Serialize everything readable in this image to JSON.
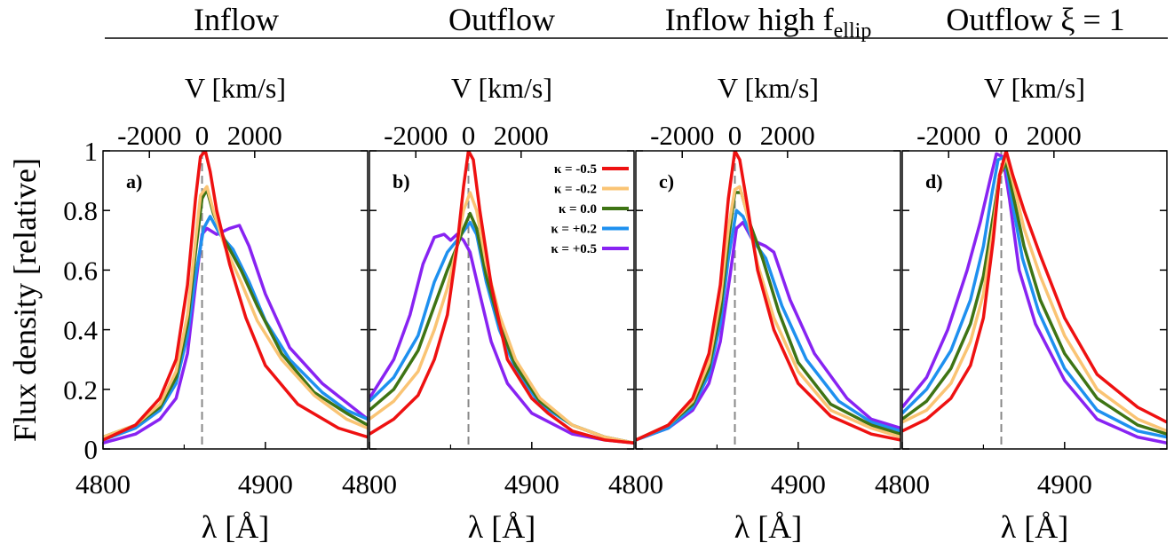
{
  "figure": {
    "column_titles": [
      {
        "text": "Inflow",
        "sub": ""
      },
      {
        "text": "Outflow",
        "sub": ""
      },
      {
        "text": "Inflow high f",
        "sub": "ellip"
      },
      {
        "text": "Outflow ξ = 1",
        "sub": ""
      }
    ],
    "top_axis_label": "V [km/s]",
    "top_tick_labels": [
      "-2000",
      "0",
      "2000"
    ],
    "x_tick_labels": [
      "4800",
      "4900"
    ],
    "x_axis_label": "λ [Å]",
    "y_axis_label": "Flux density [relative]",
    "y_tick_labels": [
      "0",
      "0.2",
      "0.4",
      "0.6",
      "0.8",
      "1"
    ]
  },
  "chart_data": {
    "type": "line",
    "xlabel": "λ [Å]",
    "ylabel": "Flux density [relative]",
    "top_xlabel": "V [km/s]",
    "xlim": [
      4800,
      4963
    ],
    "ylim": [
      0,
      1
    ],
    "top_xticks": [
      -2000,
      0,
      2000
    ],
    "xticks": [
      4800,
      4900
    ],
    "yticks": [
      0,
      0.2,
      0.4,
      0.6,
      0.8,
      1
    ],
    "legend": {
      "panel": "b",
      "placement": "top-right",
      "entries": [
        "κ = -0.5",
        "κ = -0.2",
        "κ = 0.0",
        "κ = +0.2",
        "κ = +0.5"
      ]
    },
    "series_colors": [
      "#ee1111",
      "#fac474",
      "#3e7414",
      "#1e90ef",
      "#8823f2"
    ],
    "reference_line": {
      "style": "dashed",
      "color": "#888888"
    },
    "panels": [
      {
        "label": "a)",
        "title": "Inflow",
        "ref_x": 4861,
        "series": [
          {
            "name": "κ = -0.5",
            "x": [
              4800,
              4820,
              4835,
              4845,
              4852,
              4857,
              4860,
              4863,
              4866,
              4870,
              4878,
              4888,
              4900,
              4920,
              4945,
              4963
            ],
            "y": [
              0.03,
              0.08,
              0.17,
              0.3,
              0.55,
              0.84,
              0.98,
              1.0,
              0.93,
              0.8,
              0.62,
              0.44,
              0.28,
              0.15,
              0.07,
              0.04
            ]
          },
          {
            "name": "κ = -0.2",
            "x": [
              4800,
              4820,
              4835,
              4845,
              4852,
              4857,
              4860,
              4864,
              4868,
              4875,
              4885,
              4895,
              4910,
              4930,
              4950,
              4963
            ],
            "y": [
              0.04,
              0.08,
              0.15,
              0.26,
              0.45,
              0.7,
              0.85,
              0.88,
              0.8,
              0.68,
              0.56,
              0.43,
              0.3,
              0.18,
              0.1,
              0.07
            ]
          },
          {
            "name": "κ = 0.0",
            "x": [
              4800,
              4820,
              4835,
              4845,
              4852,
              4857,
              4861,
              4864,
              4868,
              4875,
              4885,
              4895,
              4910,
              4930,
              4950,
              4963
            ],
            "y": [
              0.04,
              0.08,
              0.14,
              0.24,
              0.42,
              0.66,
              0.84,
              0.87,
              0.79,
              0.7,
              0.6,
              0.48,
              0.32,
              0.19,
              0.12,
              0.08
            ]
          },
          {
            "name": "κ = +0.2",
            "x": [
              4800,
              4820,
              4835,
              4845,
              4852,
              4857,
              4862,
              4866,
              4872,
              4880,
              4890,
              4900,
              4915,
              4935,
              4950,
              4963
            ],
            "y": [
              0.03,
              0.07,
              0.13,
              0.22,
              0.38,
              0.58,
              0.74,
              0.78,
              0.72,
              0.67,
              0.56,
              0.43,
              0.3,
              0.19,
              0.13,
              0.1
            ]
          },
          {
            "name": "κ = +0.5",
            "x": [
              4800,
              4820,
              4835,
              4845,
              4852,
              4857,
              4861,
              4864,
              4870,
              4878,
              4884,
              4890,
              4900,
              4915,
              4935,
              4963
            ],
            "y": [
              0.02,
              0.05,
              0.1,
              0.17,
              0.32,
              0.55,
              0.72,
              0.74,
              0.72,
              0.74,
              0.75,
              0.68,
              0.52,
              0.34,
              0.22,
              0.1
            ]
          }
        ]
      },
      {
        "label": "b)",
        "title": "Outflow",
        "ref_x": 4861,
        "series": [
          {
            "name": "κ = -0.5",
            "x": [
              4800,
              4815,
              4830,
              4840,
              4848,
              4854,
              4858,
              4861,
              4864,
              4868,
              4875,
              4885,
              4900,
              4910,
              4925,
              4945,
              4963
            ],
            "y": [
              0.05,
              0.1,
              0.18,
              0.3,
              0.45,
              0.68,
              0.88,
              1.0,
              0.97,
              0.8,
              0.55,
              0.3,
              0.17,
              0.12,
              0.06,
              0.03,
              0.02
            ]
          },
          {
            "name": "κ = -0.2",
            "x": [
              4800,
              4815,
              4830,
              4840,
              4848,
              4854,
              4858,
              4862,
              4866,
              4872,
              4880,
              4890,
              4905,
              4925,
              4945,
              4963
            ],
            "y": [
              0.1,
              0.16,
              0.26,
              0.4,
              0.54,
              0.68,
              0.8,
              0.86,
              0.8,
              0.62,
              0.45,
              0.3,
              0.17,
              0.08,
              0.04,
              0.02
            ]
          },
          {
            "name": "κ = 0.0",
            "x": [
              4800,
              4815,
              4830,
              4840,
              4848,
              4854,
              4858,
              4862,
              4866,
              4872,
              4880,
              4890,
              4905,
              4925,
              4945,
              4963
            ],
            "y": [
              0.13,
              0.2,
              0.33,
              0.48,
              0.6,
              0.68,
              0.74,
              0.79,
              0.74,
              0.58,
              0.42,
              0.28,
              0.16,
              0.08,
              0.04,
              0.02
            ]
          },
          {
            "name": "κ = +0.2",
            "x": [
              4800,
              4815,
              4830,
              4840,
              4848,
              4854,
              4858,
              4862,
              4866,
              4872,
              4880,
              4890,
              4905,
              4925,
              4945,
              4963
            ],
            "y": [
              0.16,
              0.24,
              0.38,
              0.56,
              0.66,
              0.7,
              0.73,
              0.76,
              0.72,
              0.56,
              0.4,
              0.27,
              0.15,
              0.08,
              0.04,
              0.02
            ]
          },
          {
            "name": "κ = +0.5",
            "x": [
              4800,
              4815,
              4825,
              4833,
              4840,
              4846,
              4850,
              4854,
              4858,
              4862,
              4868,
              4875,
              4885,
              4900,
              4925,
              4945,
              4963
            ],
            "y": [
              0.17,
              0.3,
              0.45,
              0.62,
              0.71,
              0.72,
              0.7,
              0.72,
              0.7,
              0.66,
              0.52,
              0.36,
              0.22,
              0.12,
              0.05,
              0.03,
              0.02
            ]
          }
        ]
      },
      {
        "label": "c)",
        "title": "Inflow high f_ellip",
        "ref_x": 4861,
        "series": [
          {
            "name": "κ = -0.5",
            "x": [
              4800,
              4820,
              4835,
              4845,
              4852,
              4857,
              4861,
              4864,
              4868,
              4875,
              4885,
              4900,
              4920,
              4945,
              4963
            ],
            "y": [
              0.03,
              0.08,
              0.17,
              0.32,
              0.55,
              0.84,
              1.0,
              0.97,
              0.84,
              0.6,
              0.4,
              0.22,
              0.11,
              0.05,
              0.03
            ]
          },
          {
            "name": "κ = -0.2",
            "x": [
              4800,
              4820,
              4835,
              4845,
              4852,
              4857,
              4861,
              4864,
              4868,
              4875,
              4885,
              4900,
              4920,
              4945,
              4963
            ],
            "y": [
              0.03,
              0.08,
              0.16,
              0.29,
              0.5,
              0.74,
              0.87,
              0.88,
              0.8,
              0.62,
              0.44,
              0.26,
              0.13,
              0.07,
              0.04
            ]
          },
          {
            "name": "κ = 0.0",
            "x": [
              4800,
              4820,
              4835,
              4845,
              4852,
              4857,
              4861,
              4865,
              4870,
              4878,
              4888,
              4900,
              4920,
              4945,
              4963
            ],
            "y": [
              0.03,
              0.08,
              0.15,
              0.27,
              0.46,
              0.7,
              0.86,
              0.86,
              0.76,
              0.64,
              0.46,
              0.29,
              0.15,
              0.08,
              0.05
            ]
          },
          {
            "name": "κ = +0.2",
            "x": [
              4800,
              4820,
              4835,
              4845,
              4852,
              4857,
              4862,
              4866,
              4872,
              4880,
              4890,
              4905,
              4925,
              4945,
              4963
            ],
            "y": [
              0.03,
              0.07,
              0.14,
              0.25,
              0.42,
              0.64,
              0.8,
              0.78,
              0.7,
              0.64,
              0.48,
              0.3,
              0.16,
              0.09,
              0.06
            ]
          },
          {
            "name": "κ = +0.5",
            "x": [
              4800,
              4820,
              4835,
              4845,
              4852,
              4858,
              4862,
              4866,
              4872,
              4880,
              4885,
              4895,
              4910,
              4930,
              4945,
              4963
            ],
            "y": [
              0.03,
              0.07,
              0.13,
              0.22,
              0.36,
              0.58,
              0.74,
              0.76,
              0.7,
              0.68,
              0.66,
              0.5,
              0.32,
              0.17,
              0.1,
              0.07
            ]
          }
        ]
      },
      {
        "label": "d)",
        "title": "Outflow ξ = 1",
        "ref_x": 4861,
        "series": [
          {
            "name": "κ = -0.5",
            "x": [
              4800,
              4815,
              4830,
              4842,
              4850,
              4856,
              4860,
              4864,
              4868,
              4875,
              4885,
              4900,
              4920,
              4945,
              4963
            ],
            "y": [
              0.06,
              0.1,
              0.17,
              0.28,
              0.44,
              0.7,
              0.92,
              1.0,
              0.92,
              0.8,
              0.65,
              0.44,
              0.25,
              0.14,
              0.09
            ]
          },
          {
            "name": "κ = -0.2",
            "x": [
              4800,
              4815,
              4830,
              4842,
              4850,
              4856,
              4860,
              4864,
              4868,
              4875,
              4885,
              4900,
              4920,
              4945,
              4963
            ],
            "y": [
              0.09,
              0.13,
              0.22,
              0.36,
              0.52,
              0.74,
              0.92,
              0.98,
              0.9,
              0.74,
              0.58,
              0.38,
              0.2,
              0.1,
              0.06
            ]
          },
          {
            "name": "κ = 0.0",
            "x": [
              4800,
              4815,
              4830,
              4842,
              4850,
              4856,
              4860,
              4864,
              4868,
              4875,
              4885,
              4900,
              4920,
              4945,
              4963
            ],
            "y": [
              0.1,
              0.16,
              0.27,
              0.42,
              0.58,
              0.78,
              0.92,
              0.96,
              0.86,
              0.68,
              0.5,
              0.32,
              0.17,
              0.08,
              0.05
            ]
          },
          {
            "name": "κ = +0.2",
            "x": [
              4800,
              4815,
              4830,
              4842,
              4850,
              4855,
              4859,
              4863,
              4867,
              4874,
              4884,
              4900,
              4920,
              4945,
              4963
            ],
            "y": [
              0.12,
              0.2,
              0.33,
              0.5,
              0.68,
              0.85,
              0.97,
              0.98,
              0.85,
              0.64,
              0.46,
              0.27,
              0.13,
              0.06,
              0.04
            ]
          },
          {
            "name": "κ = +0.5",
            "x": [
              4800,
              4815,
              4828,
              4840,
              4848,
              4854,
              4858,
              4862,
              4866,
              4872,
              4882,
              4900,
              4920,
              4945,
              4963
            ],
            "y": [
              0.14,
              0.24,
              0.4,
              0.6,
              0.76,
              0.9,
              0.99,
              0.98,
              0.84,
              0.6,
              0.42,
              0.23,
              0.1,
              0.04,
              0.02
            ]
          }
        ]
      }
    ]
  }
}
